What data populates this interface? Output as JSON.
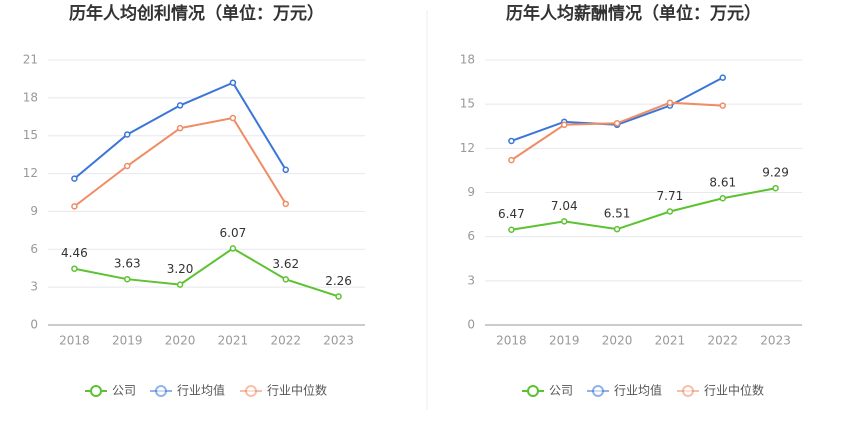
{
  "chart_data": [
    {
      "type": "line",
      "title": "历年人均创利情况（单位：万元）",
      "categories": [
        "2018",
        "2019",
        "2020",
        "2021",
        "2022",
        "2023"
      ],
      "ylim": [
        0,
        21
      ],
      "yticks": [
        0,
        3,
        6,
        9,
        12,
        15,
        18,
        21
      ],
      "grid": true,
      "series": [
        {
          "name": "公司",
          "color": "#5dc230",
          "values": [
            4.46,
            3.63,
            3.2,
            6.07,
            3.62,
            2.26
          ],
          "value_labels": [
            "4.46",
            "3.63",
            "3.20",
            "6.07",
            "3.62",
            "2.26"
          ]
        },
        {
          "name": "行业均值",
          "color": "#3a75d9",
          "values": [
            11.6,
            15.1,
            17.4,
            19.2,
            12.3,
            null
          ]
        },
        {
          "name": "行业中位数",
          "color": "#f08c64",
          "values": [
            9.4,
            12.6,
            15.6,
            16.4,
            9.6,
            null
          ]
        }
      ]
    },
    {
      "type": "line",
      "title": "历年人均薪酬情况（单位：万元）",
      "categories": [
        "2018",
        "2019",
        "2020",
        "2021",
        "2022",
        "2023"
      ],
      "ylim": [
        0,
        18
      ],
      "yticks": [
        0,
        3,
        6,
        9,
        12,
        15,
        18
      ],
      "grid": true,
      "series": [
        {
          "name": "公司",
          "color": "#5dc230",
          "values": [
            6.47,
            7.04,
            6.51,
            7.71,
            8.61,
            9.29
          ],
          "value_labels": [
            "6.47",
            "7.04",
            "6.51",
            "7.71",
            "8.61",
            "9.29"
          ]
        },
        {
          "name": "行业均值",
          "color": "#3a75d9",
          "values": [
            12.5,
            13.8,
            13.6,
            14.9,
            16.8,
            null
          ]
        },
        {
          "name": "行业中位数",
          "color": "#f08c64",
          "values": [
            11.2,
            13.6,
            13.7,
            15.1,
            14.9,
            null
          ]
        }
      ]
    }
  ]
}
